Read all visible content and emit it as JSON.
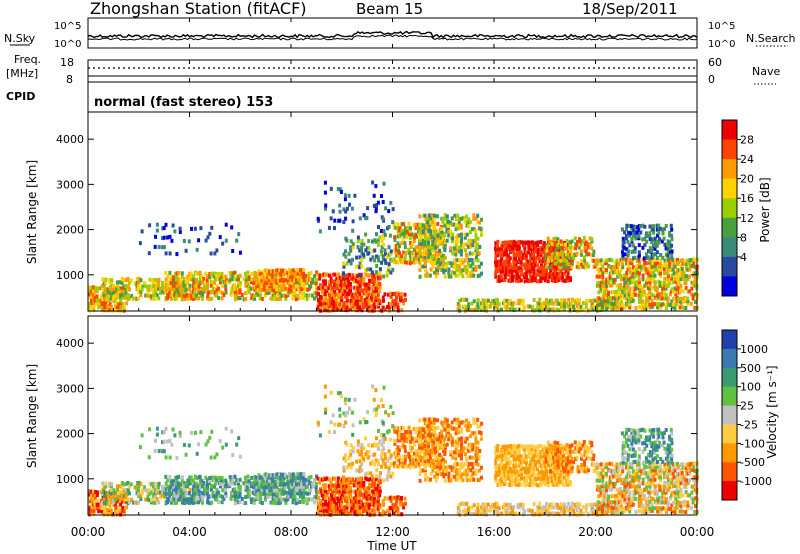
{
  "header": {
    "title": "Zhongshan Station (fitACF)",
    "beam": "Beam 15",
    "date": "18/Sep/2011"
  },
  "noise_panel": {
    "left_label": "N.Sky",
    "left_ticks": [
      "10^5",
      "10^0"
    ],
    "right_ticks": [
      "10^5",
      "10^0"
    ],
    "right_label": "N.Search"
  },
  "freq_panel": {
    "label_line1": "Freq.",
    "label_line2": "[MHz]",
    "left_ticks": [
      "18",
      "8"
    ],
    "right_ticks": [
      "60",
      "0"
    ],
    "right_label": "Nave"
  },
  "cpid_panel": {
    "label": "CPID",
    "mode_text": "normal (fast stereo) 153"
  },
  "chart_data": [
    {
      "type": "heatmap",
      "name": "power",
      "ylabel": "Slant Range [km]",
      "yticks": [
        1000,
        2000,
        3000,
        4000
      ],
      "ylim": [
        200,
        4600
      ],
      "colorbar": {
        "label": "Power [dB]",
        "tick_labels": [
          "28",
          "24",
          "20",
          "16",
          "12",
          "8",
          "4"
        ],
        "colors": [
          "#ee0000",
          "#ff4400",
          "#ff9a00",
          "#ffd200",
          "#9ad000",
          "#4aa040",
          "#3a8a7a",
          "#2a4aa0",
          "#0000dd"
        ]
      }
    },
    {
      "type": "heatmap",
      "name": "velocity",
      "ylabel": "Slant Range [km]",
      "yticks": [
        1000,
        2000,
        3000,
        4000
      ],
      "ylim": [
        200,
        4600
      ],
      "colorbar": {
        "label": "Velocity [m s⁻¹]",
        "tick_labels": [
          "1000",
          "500",
          "100",
          "25",
          "-25",
          "-100",
          "-500",
          "-1000"
        ],
        "colors": [
          "#2040b0",
          "#3a7ab0",
          "#3a9a70",
          "#60c040",
          "#c0c0c0",
          "#ffcc44",
          "#ff9900",
          "#ff5500",
          "#ee0000"
        ]
      }
    }
  ],
  "xaxis": {
    "ticks": [
      "00:00",
      "04:00",
      "08:00",
      "12:00",
      "16:00",
      "20:00",
      "00:00"
    ],
    "label": "Time UT"
  }
}
